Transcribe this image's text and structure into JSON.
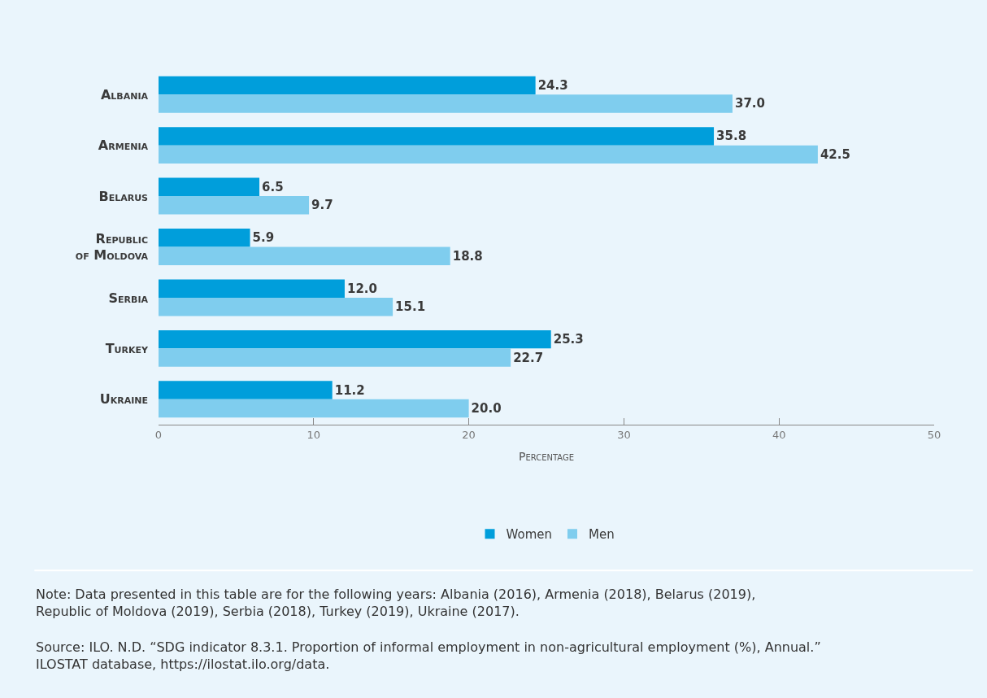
{
  "chart_data": {
    "type": "bar",
    "orientation": "horizontal",
    "categories": [
      "Albania",
      "Armenia",
      "Belarus",
      "Republic of Moldova",
      "Serbia",
      "Turkey",
      "Ukraine"
    ],
    "series": [
      {
        "name": "Women",
        "color": "#009edb",
        "values": [
          24.3,
          35.8,
          6.5,
          5.9,
          12.0,
          25.3,
          11.2
        ],
        "value_labels": [
          "24.3",
          "35.8",
          "6.5",
          "5.9",
          "12.0",
          "25.3",
          "11.2"
        ]
      },
      {
        "name": "Men",
        "color": "#7fcdee",
        "values": [
          37.0,
          42.5,
          9.7,
          18.8,
          15.1,
          22.7,
          20.0
        ],
        "value_labels": [
          "37.0",
          "42.5",
          "9.7",
          "18.8",
          "15.1",
          "22.7",
          "20.0"
        ]
      }
    ],
    "xlabel": "Percentage",
    "xlim": [
      0,
      50
    ],
    "xticks": [
      0,
      10,
      20,
      30,
      40,
      50
    ],
    "grid": false,
    "legend": "bottom",
    "annotations": [
      "Note: Data presented in this table are for the following years: Albania (2016), Armenia (2018), Belarus (2019), Republic of Moldova (2019), Serbia (2018), Turkey (2019), Ukraine (2017).",
      "Source: ILO. N.D. “SDG indicator 8.3.1. Proportion of informal employment in non-agricultural employment (%), Annual.” ILOSTAT database, https://ilostat.ilo.org/data."
    ]
  }
}
